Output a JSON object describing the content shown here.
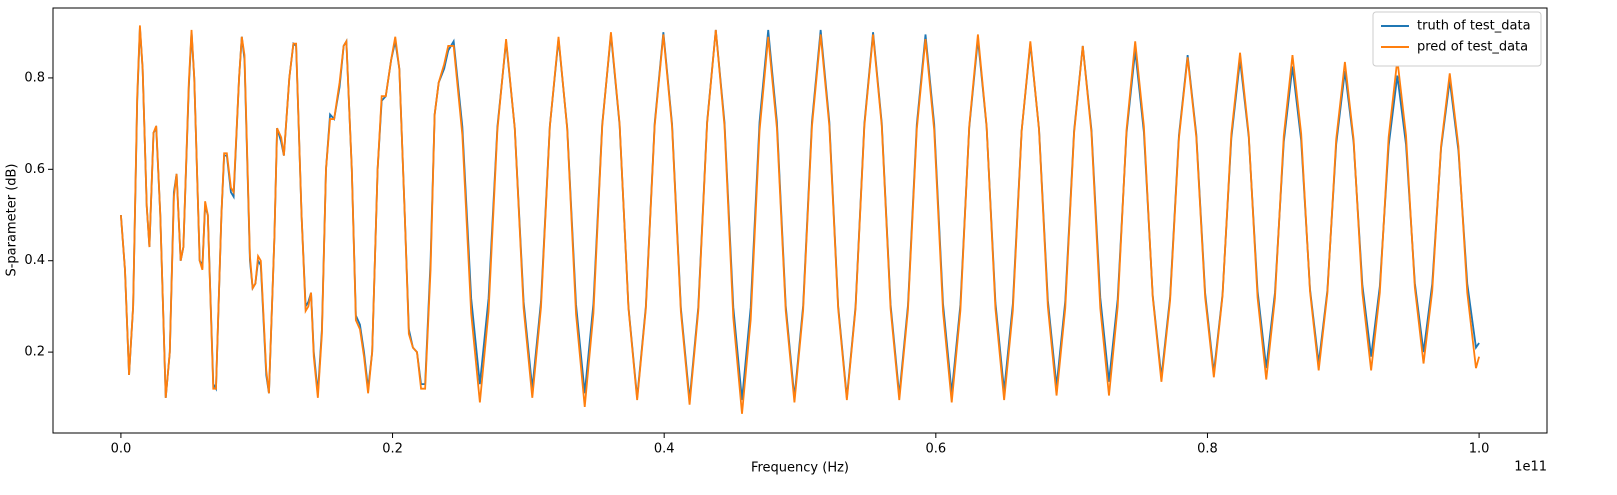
{
  "chart_data": {
    "type": "line",
    "x_label": "Frequency (Hz)",
    "y_label": "S-parameter (dB)",
    "x_offset_label": "1e11",
    "xlim": [
      -0.05,
      1.05
    ],
    "ylim": [
      0.023,
      0.953
    ],
    "xticks": [
      {
        "value": 0,
        "label": "0.0"
      },
      0.2,
      0.4,
      0.6,
      0.8,
      {
        "value": 1,
        "label": "1.0"
      }
    ],
    "yticks": [
      0.2,
      0.4,
      0.6,
      0.8
    ],
    "grid": false,
    "legend": "upper-right",
    "x": [
      0,
      0.003,
      0.006,
      0.009,
      0.012,
      0.014,
      0.016,
      0.019,
      0.021,
      0.024,
      0.026,
      0.029,
      0.033,
      0.036,
      0.039,
      0.041,
      0.044,
      0.046,
      0.05,
      0.052,
      0.054,
      0.058,
      0.06,
      0.062,
      0.064,
      0.068,
      0.07,
      0.074,
      0.076,
      0.078,
      0.081,
      0.083,
      0.087,
      0.089,
      0.091,
      0.095,
      0.097,
      0.099,
      0.101,
      0.103,
      0.107,
      0.109,
      0.113,
      0.115,
      0.118,
      0.12,
      0.124,
      0.127,
      0.129,
      0.133,
      0.136,
      0.138,
      0.14,
      0.142,
      0.145,
      0.148,
      0.151,
      0.154,
      0.157,
      0.161,
      0.164,
      0.166,
      0.17,
      0.173,
      0.176,
      0.179,
      0.182,
      0.185,
      0.189,
      0.192,
      0.195,
      0.199,
      0.202,
      0.205,
      0.209,
      0.212,
      0.215,
      0.218,
      0.221,
      0.224,
      0.228,
      0.231,
      0.234,
      0.238,
      0.241,
      0.245,
      0.2514,
      0.2579,
      0.2643,
      0.2707,
      0.2772,
      0.2836,
      0.29,
      0.2965,
      0.3029,
      0.3093,
      0.3158,
      0.3222,
      0.3286,
      0.3351,
      0.3415,
      0.3479,
      0.3544,
      0.3608,
      0.3672,
      0.3737,
      0.3801,
      0.3865,
      0.393,
      0.3994,
      0.4058,
      0.4123,
      0.4187,
      0.4251,
      0.4316,
      0.438,
      0.4444,
      0.4509,
      0.4573,
      0.4637,
      0.4702,
      0.4766,
      0.483,
      0.4895,
      0.4959,
      0.5023,
      0.5088,
      0.5152,
      0.5216,
      0.5281,
      0.5345,
      0.5409,
      0.5474,
      0.5538,
      0.5602,
      0.5667,
      0.5731,
      0.5795,
      0.586,
      0.5924,
      0.5988,
      0.6053,
      0.6117,
      0.6181,
      0.6246,
      0.631,
      0.6374,
      0.6439,
      0.6503,
      0.6567,
      0.6632,
      0.6696,
      0.676,
      0.6825,
      0.6889,
      0.6953,
      0.7018,
      0.7082,
      0.7146,
      0.7211,
      0.7275,
      0.7339,
      0.7404,
      0.7468,
      0.7532,
      0.7597,
      0.7661,
      0.7725,
      0.779,
      0.7854,
      0.7918,
      0.7983,
      0.8047,
      0.8111,
      0.8176,
      0.824,
      0.8304,
      0.8369,
      0.8433,
      0.8497,
      0.8562,
      0.8626,
      0.869,
      0.8755,
      0.8819,
      0.8883,
      0.8948,
      0.9012,
      0.9076,
      0.9141,
      0.9205,
      0.9269,
      0.9334,
      0.9398,
      0.9462,
      0.9527,
      0.9591,
      0.9655,
      0.972,
      0.9784,
      0.9848,
      0.9913,
      0.9977,
      1
    ],
    "series": [
      {
        "name": "truth of test_data",
        "color": "#1f77b4",
        "values": [
          0.5,
          0.38,
          0.15,
          0.3,
          0.75,
          0.91,
          0.82,
          0.52,
          0.43,
          0.68,
          0.69,
          0.5,
          0.1,
          0.2,
          0.55,
          0.59,
          0.4,
          0.43,
          0.78,
          0.9,
          0.8,
          0.4,
          0.39,
          0.52,
          0.5,
          0.13,
          0.12,
          0.5,
          0.63,
          0.63,
          0.55,
          0.54,
          0.8,
          0.89,
          0.84,
          0.4,
          0.34,
          0.35,
          0.4,
          0.39,
          0.15,
          0.11,
          0.45,
          0.69,
          0.66,
          0.63,
          0.8,
          0.875,
          0.87,
          0.5,
          0.3,
          0.31,
          0.33,
          0.2,
          0.11,
          0.25,
          0.6,
          0.72,
          0.71,
          0.78,
          0.87,
          0.88,
          0.6,
          0.28,
          0.26,
          0.2,
          0.12,
          0.2,
          0.6,
          0.75,
          0.76,
          0.84,
          0.88,
          0.82,
          0.5,
          0.25,
          0.21,
          0.2,
          0.13,
          0.13,
          0.4,
          0.72,
          0.79,
          0.82,
          0.86,
          0.88,
          0.693,
          0.318,
          0.13,
          0.318,
          0.693,
          0.88,
          0.69,
          0.31,
          0.12,
          0.311,
          0.694,
          0.885,
          0.691,
          0.304,
          0.11,
          0.306,
          0.699,
          0.895,
          0.696,
          0.299,
          0.1,
          0.3,
          0.7,
          0.9,
          0.699,
          0.296,
          0.095,
          0.298,
          0.703,
          0.905,
          0.703,
          0.298,
          0.095,
          0.298,
          0.703,
          0.905,
          0.704,
          0.301,
          0.1,
          0.301,
          0.704,
          0.905,
          0.704,
          0.301,
          0.1,
          0.3,
          0.7,
          0.9,
          0.701,
          0.304,
          0.105,
          0.303,
          0.698,
          0.895,
          0.699,
          0.306,
          0.11,
          0.304,
          0.691,
          0.885,
          0.693,
          0.308,
          0.115,
          0.305,
          0.685,
          0.875,
          0.688,
          0.313,
          0.125,
          0.311,
          0.684,
          0.87,
          0.686,
          0.319,
          0.135,
          0.316,
          0.679,
          0.86,
          0.681,
          0.324,
          0.145,
          0.321,
          0.674,
          0.85,
          0.676,
          0.329,
          0.155,
          0.326,
          0.669,
          0.84,
          0.671,
          0.334,
          0.165,
          0.33,
          0.66,
          0.825,
          0.663,
          0.338,
          0.175,
          0.335,
          0.655,
          0.815,
          0.659,
          0.346,
          0.19,
          0.344,
          0.651,
          0.805,
          0.654,
          0.351,
          0.2,
          0.349,
          0.646,
          0.795,
          0.64,
          0.35,
          0.21,
          0.22
        ]
      },
      {
        "name": "pred of test_data",
        "color": "#ff7f0e",
        "values": [
          0.5,
          0.38,
          0.15,
          0.3,
          0.76,
          0.915,
          0.82,
          0.52,
          0.43,
          0.68,
          0.695,
          0.5,
          0.1,
          0.2,
          0.54,
          0.59,
          0.4,
          0.43,
          0.79,
          0.905,
          0.8,
          0.4,
          0.38,
          0.53,
          0.5,
          0.12,
          0.12,
          0.5,
          0.635,
          0.635,
          0.56,
          0.55,
          0.8,
          0.89,
          0.85,
          0.41,
          0.34,
          0.35,
          0.41,
          0.4,
          0.16,
          0.11,
          0.45,
          0.69,
          0.67,
          0.63,
          0.8,
          0.875,
          0.875,
          0.5,
          0.29,
          0.3,
          0.33,
          0.19,
          0.1,
          0.24,
          0.6,
          0.71,
          0.71,
          0.79,
          0.87,
          0.88,
          0.6,
          0.27,
          0.25,
          0.19,
          0.11,
          0.2,
          0.6,
          0.76,
          0.76,
          0.84,
          0.89,
          0.82,
          0.5,
          0.24,
          0.21,
          0.2,
          0.12,
          0.12,
          0.38,
          0.72,
          0.79,
          0.83,
          0.87,
          0.87,
          0.675,
          0.285,
          0.09,
          0.289,
          0.686,
          0.885,
          0.689,
          0.296,
          0.1,
          0.298,
          0.693,
          0.89,
          0.688,
          0.283,
          0.08,
          0.285,
          0.695,
          0.9,
          0.699,
          0.296,
          0.095,
          0.295,
          0.695,
          0.895,
          0.693,
          0.288,
          0.085,
          0.29,
          0.7,
          0.905,
          0.695,
          0.275,
          0.065,
          0.271,
          0.684,
          0.89,
          0.69,
          0.29,
          0.09,
          0.291,
          0.694,
          0.895,
          0.695,
          0.295,
          0.095,
          0.295,
          0.695,
          0.895,
          0.695,
          0.295,
          0.095,
          0.293,
          0.688,
          0.885,
          0.686,
          0.289,
          0.09,
          0.291,
          0.694,
          0.895,
          0.695,
          0.295,
          0.095,
          0.291,
          0.684,
          0.88,
          0.686,
          0.299,
          0.105,
          0.296,
          0.679,
          0.87,
          0.679,
          0.296,
          0.105,
          0.299,
          0.686,
          0.88,
          0.694,
          0.321,
          0.135,
          0.313,
          0.668,
          0.845,
          0.67,
          0.32,
          0.145,
          0.323,
          0.678,
          0.855,
          0.676,
          0.319,
          0.14,
          0.318,
          0.673,
          0.85,
          0.678,
          0.333,
          0.16,
          0.329,
          0.666,
          0.835,
          0.666,
          0.329,
          0.16,
          0.33,
          0.67,
          0.84,
          0.674,
          0.341,
          0.175,
          0.334,
          0.651,
          0.81,
          0.65,
          0.33,
          0.165,
          0.19
        ]
      }
    ]
  }
}
